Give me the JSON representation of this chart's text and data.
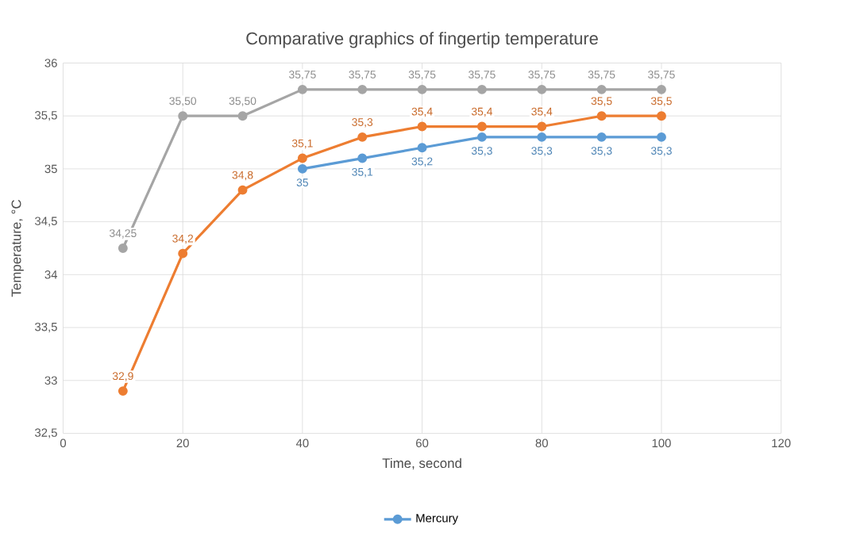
{
  "chart_data": {
    "type": "line",
    "title": "Comparative graphics of fingertip temperature",
    "xlabel": "Time, second",
    "ylabel": "Temperature, °C",
    "xlim": [
      0,
      120
    ],
    "xticks": [
      0,
      20,
      40,
      60,
      80,
      100,
      120
    ],
    "ylim": [
      32.5,
      36
    ],
    "yticks": [
      {
        "value": 32.5,
        "label": "32,5"
      },
      {
        "value": 33,
        "label": "33"
      },
      {
        "value": 33.5,
        "label": "33,5"
      },
      {
        "value": 34,
        "label": "34"
      },
      {
        "value": 34.5,
        "label": "34,5"
      },
      {
        "value": 35,
        "label": "35"
      },
      {
        "value": 35.5,
        "label": "35,5"
      },
      {
        "value": 36,
        "label": "36"
      }
    ],
    "grid": true,
    "marker": "circle",
    "legend": "bottom",
    "series": [
      {
        "name": "Mercury",
        "color": "#5b9bd5",
        "x": [
          40,
          50,
          60,
          70,
          80,
          90,
          100
        ],
        "values": [
          35,
          35.1,
          35.2,
          35.3,
          35.3,
          35.3,
          35.3
        ],
        "value_labels": [
          "35",
          "35,1",
          "35,2",
          "35,3",
          "35,3",
          "35,3",
          "35,3"
        ]
      },
      {
        "color": "#ed7d31",
        "x": [
          10,
          20,
          30,
          40,
          50,
          60,
          70,
          80,
          90,
          100
        ],
        "values": [
          32.9,
          34.2,
          34.8,
          35.1,
          35.3,
          35.4,
          35.4,
          35.4,
          35.5,
          35.5
        ],
        "value_labels": [
          "32,9",
          "34,2",
          "34,8",
          "35,1",
          "35,3",
          "35,4",
          "35,4",
          "35,4",
          "35,5",
          "35,5"
        ]
      },
      {
        "color": "#a5a5a5",
        "x": [
          10,
          20,
          30,
          40,
          50,
          60,
          70,
          80,
          90,
          100
        ],
        "values": [
          34.25,
          35.5,
          35.5,
          35.75,
          35.75,
          35.75,
          35.75,
          35.75,
          35.75,
          35.75
        ],
        "value_labels": [
          "34,25",
          "35,50",
          "35,50",
          "35,75",
          "35,75",
          "35,75",
          "35,75",
          "35,75",
          "35,75",
          "35,75"
        ]
      }
    ]
  }
}
